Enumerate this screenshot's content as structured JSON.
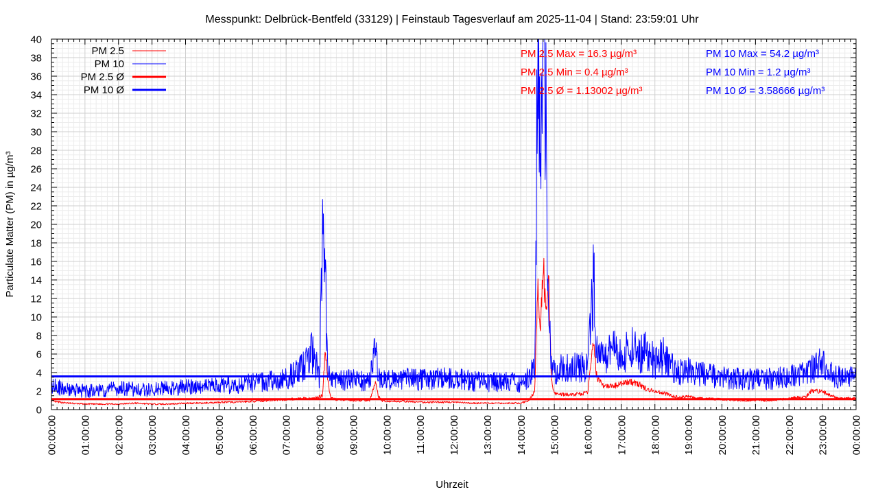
{
  "chart_data": {
    "type": "line",
    "title": "Messpunkt: Delbrück-Bentfeld (33129) | Feinstaub Tagesverlauf am 2025-11-04 | Stand: 23:59:01 Uhr",
    "xlabel": "Uhrzeit",
    "ylabel": "Particulate Matter (PM) in µg/m³",
    "ylim": [
      0,
      40
    ],
    "xlim": [
      "00:00:00",
      "24:00:00"
    ],
    "grid": true,
    "legend_position": "top-left",
    "x_ticks": [
      "00:00:00",
      "01:00:00",
      "02:00:00",
      "03:00:00",
      "04:00:00",
      "05:00:00",
      "06:00:00",
      "07:00:00",
      "08:00:00",
      "09:00:00",
      "10:00:00",
      "11:00:00",
      "12:00:00",
      "13:00:00",
      "14:00:00",
      "15:00:00",
      "16:00:00",
      "17:00:00",
      "18:00:00",
      "19:00:00",
      "20:00:00",
      "21:00:00",
      "22:00:00",
      "23:00:00",
      "00:00:00"
    ],
    "y_ticks": [
      0,
      2,
      4,
      6,
      8,
      10,
      12,
      14,
      16,
      18,
      20,
      22,
      24,
      26,
      28,
      30,
      32,
      34,
      36,
      38,
      40
    ],
    "colors": {
      "pm25": "#ff0000",
      "pm10": "#0000ff"
    },
    "series": [
      {
        "name": "PM 2.5",
        "color": "#ff0000",
        "x": [
          "00:00",
          "00:30",
          "01:00",
          "01:30",
          "02:00",
          "02:30",
          "03:00",
          "03:30",
          "04:00",
          "04:30",
          "05:00",
          "05:30",
          "06:00",
          "06:30",
          "07:00",
          "07:30",
          "07:50",
          "08:05",
          "08:10",
          "08:15",
          "08:20",
          "08:30",
          "09:00",
          "09:30",
          "09:40",
          "09:45",
          "09:50",
          "10:00",
          "10:30",
          "11:00",
          "11:30",
          "12:00",
          "12:30",
          "13:00",
          "13:30",
          "14:00",
          "14:15",
          "14:25",
          "14:30",
          "14:35",
          "14:40",
          "14:45",
          "14:50",
          "14:55",
          "15:00",
          "15:30",
          "16:00",
          "16:10",
          "16:15",
          "16:20",
          "16:30",
          "16:45",
          "17:00",
          "17:15",
          "17:30",
          "17:45",
          "18:00",
          "18:15",
          "18:30",
          "18:45",
          "19:00",
          "19:15",
          "19:30",
          "20:00",
          "20:30",
          "21:00",
          "21:30",
          "22:00",
          "22:30",
          "22:40",
          "23:00",
          "23:10",
          "23:30",
          "24:00"
        ],
        "values": [
          0.9,
          0.7,
          0.6,
          0.6,
          0.6,
          0.7,
          0.6,
          0.6,
          0.7,
          0.7,
          0.8,
          0.8,
          0.9,
          1.0,
          1.1,
          1.2,
          1.2,
          1.5,
          6.5,
          3.0,
          1.2,
          1.1,
          1.0,
          1.0,
          3.0,
          1.5,
          1.0,
          0.9,
          0.9,
          0.8,
          0.8,
          0.8,
          0.7,
          0.7,
          0.7,
          0.7,
          1.0,
          2.0,
          13.5,
          8.0,
          16.3,
          10.0,
          13.5,
          3.0,
          1.7,
          1.6,
          1.8,
          8.0,
          4.0,
          3.0,
          2.5,
          2.5,
          2.8,
          3.0,
          2.8,
          2.2,
          2.0,
          1.8,
          1.5,
          1.3,
          1.5,
          1.2,
          1.2,
          1.1,
          1.0,
          1.0,
          1.0,
          1.2,
          1.4,
          2.0,
          2.0,
          1.6,
          1.2,
          1.2
        ]
      },
      {
        "name": "PM 10",
        "color": "#0000ff",
        "x": [
          "00:00",
          "00:30",
          "01:00",
          "01:30",
          "02:00",
          "02:30",
          "03:00",
          "03:30",
          "04:00",
          "04:30",
          "05:00",
          "05:30",
          "06:00",
          "06:30",
          "07:00",
          "07:30",
          "07:45",
          "08:00",
          "08:05",
          "08:10",
          "08:15",
          "08:20",
          "08:30",
          "09:00",
          "09:30",
          "09:40",
          "09:45",
          "09:50",
          "10:00",
          "10:30",
          "11:00",
          "11:30",
          "12:00",
          "12:30",
          "13:00",
          "13:30",
          "14:00",
          "14:15",
          "14:25",
          "14:30",
          "14:35",
          "14:40",
          "14:45",
          "14:50",
          "14:55",
          "15:00",
          "15:30",
          "16:00",
          "16:10",
          "16:15",
          "16:20",
          "16:30",
          "16:45",
          "17:00",
          "17:15",
          "17:30",
          "17:45",
          "18:00",
          "18:15",
          "18:30",
          "18:45",
          "19:00",
          "19:15",
          "19:30",
          "20:00",
          "20:30",
          "21:00",
          "21:30",
          "22:00",
          "22:30",
          "22:45",
          "23:00",
          "23:10",
          "23:30",
          "24:00"
        ],
        "values": [
          2.5,
          2.2,
          2.0,
          2.1,
          2.3,
          2.2,
          2.2,
          2.3,
          2.4,
          2.5,
          2.6,
          2.7,
          2.9,
          3.1,
          3.3,
          4.5,
          6.5,
          3.5,
          19.0,
          14.0,
          4.0,
          3.2,
          3.3,
          3.2,
          3.0,
          7.5,
          3.5,
          3.2,
          3.2,
          3.4,
          3.2,
          3.3,
          3.4,
          3.1,
          3.0,
          3.0,
          2.9,
          3.5,
          5.0,
          40.0,
          25.0,
          54.2,
          30.0,
          13.5,
          4.5,
          4.2,
          4.6,
          4.5,
          14.5,
          8.0,
          6.0,
          5.5,
          6.5,
          5.5,
          7.0,
          6.0,
          6.5,
          5.0,
          6.0,
          4.5,
          4.0,
          4.5,
          4.0,
          3.8,
          3.5,
          3.3,
          3.3,
          3.3,
          3.5,
          3.8,
          4.5,
          5.0,
          4.0,
          3.5,
          3.5
        ]
      }
    ],
    "averages": [
      {
        "name": "PM 2.5 Ø",
        "value": 1.13002,
        "color": "#ff0000"
      },
      {
        "name": "PM 10 Ø",
        "value": 3.58666,
        "color": "#0000ff"
      }
    ],
    "annotations": {
      "pm25": [
        "PM 2.5 Max = 16.3 µg/m³",
        "PM 2.5 Min = 0.4 µg/m³",
        "PM 2.5 Ø = 1.13002 µg/m³"
      ],
      "pm10": [
        "PM 10 Max = 54.2 µg/m³",
        "PM 10 Min = 1.2 µg/m³",
        "PM 10 Ø = 3.58666 µg/m³"
      ]
    }
  }
}
